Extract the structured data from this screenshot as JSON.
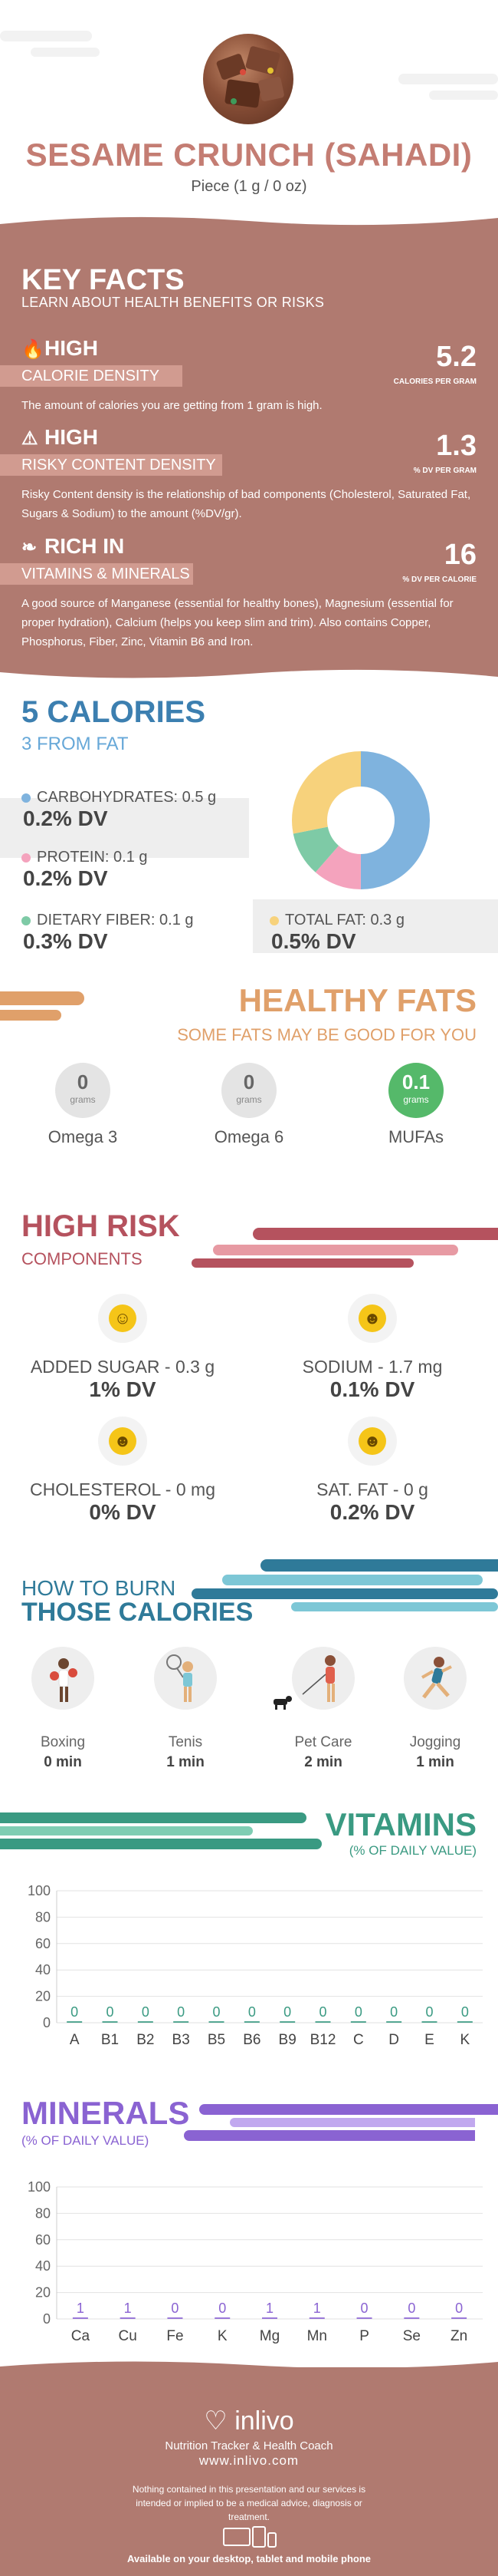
{
  "header": {
    "title": "SESAME CRUNCH (SAHADI)",
    "serving": "Piece (1 g / 0 oz)"
  },
  "key_facts": {
    "title": "KEY FACTS",
    "subtitle": "LEARN ABOUT HEALTH BENEFITS OR RISKS",
    "items": [
      {
        "level": "HIGH",
        "label": "CALORIE DENSITY",
        "value": "5.2",
        "unit": "CALORIES PER GRAM",
        "icon": "flame-icon",
        "desc": "The amount of calories you are getting from 1 gram is high."
      },
      {
        "level": "HIGH",
        "label": "RISKY CONTENT DENSITY",
        "value": "1.3",
        "unit": "% DV PER GRAM",
        "icon": "warning-icon",
        "desc": "Risky Content density is the relationship of bad components (Cholesterol, Saturated Fat, Sugars & Sodium) to the amount (%DV/gr)."
      },
      {
        "level": "RICH  IN",
        "label": "VITAMINS & MINERALS",
        "value": "16",
        "unit": "% DV PER CALORIE",
        "icon": "leaf-icon",
        "desc": "A good source of Manganese (essential for healthy bones), Magnesium (essential for proper hydration), Calcium (helps you keep slim and trim). Also contains Copper, Phosphorus, Fiber, Zinc, Vitamin B6 and Iron."
      }
    ]
  },
  "calories": {
    "title": "5 CALORIES",
    "from_fat": "3 FROM FAT",
    "macros": [
      {
        "label": "CARBOHYDRATES: 0.5 g",
        "dv": "0.2% DV",
        "color": "#7fb3de"
      },
      {
        "label": "PROTEIN: 0.1 g",
        "dv": "0.2% DV",
        "color": "#f4a3bd"
      },
      {
        "label": "DIETARY FIBER: 0.1 g",
        "dv": "0.3% DV",
        "color": "#7ecaa6"
      },
      {
        "label": "TOTAL FAT: 0.3 g",
        "dv": "0.5% DV",
        "color": "#f7d27c"
      }
    ]
  },
  "healthy_fats": {
    "title": "HEALTHY FATS",
    "subtitle": "SOME FATS MAY BE GOOD FOR YOU",
    "items": [
      {
        "value": "0",
        "unit": "grams",
        "name": "Omega 3"
      },
      {
        "value": "0",
        "unit": "grams",
        "name": "Omega 6"
      },
      {
        "value": "0.1",
        "unit": "grams",
        "name": "MUFAs"
      }
    ]
  },
  "high_risk": {
    "title": "HIGH RISK",
    "subtitle": "COMPONENTS",
    "items": [
      {
        "label": "ADDED SUGAR - 0.3 g",
        "dv": "1% DV",
        "face": "☺"
      },
      {
        "label": "SODIUM - 1.7 mg",
        "dv": "0.1% DV",
        "face": "☻"
      },
      {
        "label": "CHOLESTEROL - 0 mg",
        "dv": "0% DV",
        "face": "☻"
      },
      {
        "label": "SAT. FAT - 0 g",
        "dv": "0.2% DV",
        "face": "☻"
      }
    ]
  },
  "burn": {
    "title_line1": "HOW TO BURN",
    "title_line2": "THOSE CALORIES",
    "activities": [
      {
        "name": "Boxing",
        "min": "0 min"
      },
      {
        "name": "Tenis",
        "min": "1 min"
      },
      {
        "name": "Pet Care",
        "min": "2 min"
      },
      {
        "name": "Jogging",
        "min": "1 min"
      }
    ]
  },
  "vitamins": {
    "title": "VITAMINS",
    "subtitle": "(% OF DAILY VALUE)"
  },
  "minerals": {
    "title": "MINERALS",
    "subtitle": "(% OF DAILY VALUE)"
  },
  "chart_data": [
    {
      "type": "bar",
      "categories": [
        "A",
        "B1",
        "B2",
        "B3",
        "B5",
        "B6",
        "B9",
        "B12",
        "C",
        "D",
        "E",
        "K"
      ],
      "values": [
        0,
        0,
        0,
        0,
        0,
        0,
        0,
        0,
        0,
        0,
        0,
        0
      ],
      "ylim": [
        0,
        100
      ],
      "yticks": [
        0,
        20,
        40,
        60,
        80,
        100
      ],
      "color": "#3a9a82"
    },
    {
      "type": "bar",
      "categories": [
        "Ca",
        "Cu",
        "Fe",
        "K",
        "Mg",
        "Mn",
        "P",
        "Se",
        "Zn"
      ],
      "values": [
        1,
        1,
        0,
        0,
        1,
        1,
        0,
        0,
        0
      ],
      "ylim": [
        0,
        100
      ],
      "yticks": [
        0,
        20,
        40,
        60,
        80,
        100
      ],
      "color": "#8a63d2"
    }
  ],
  "footer": {
    "logo": "inlivo",
    "tagline": "Nutrition Tracker & Health Coach",
    "site": "www.inlivo.com",
    "disclaimer": "Nothing contained in this presentation and our services is intended or implied to be a medical advice, diagnosis or treatment.",
    "available": "Available on your desktop, tablet and mobile phone"
  }
}
